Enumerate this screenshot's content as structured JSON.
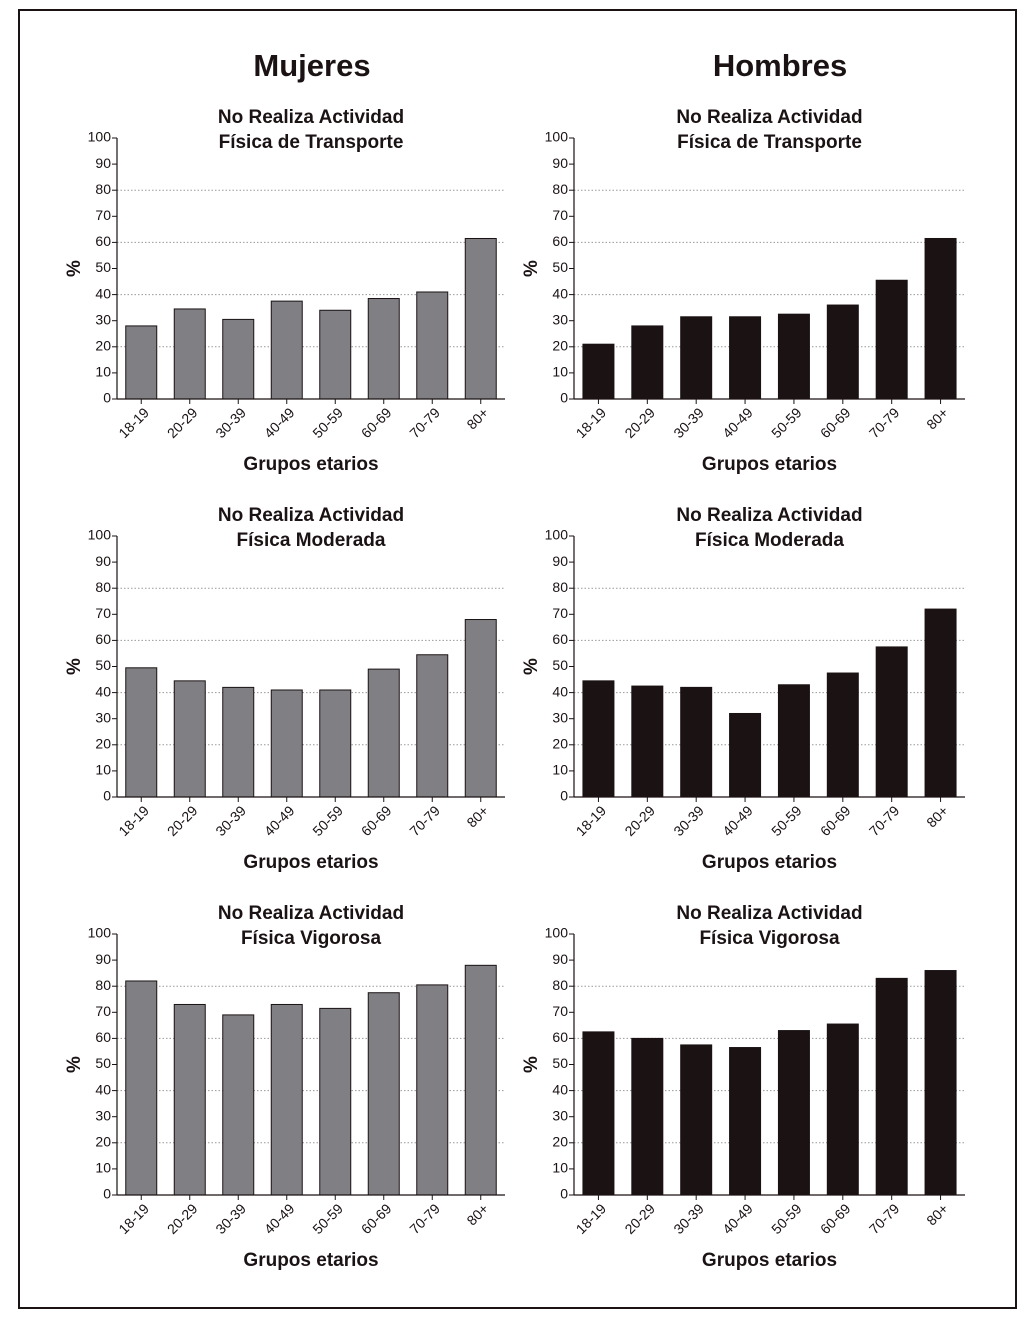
{
  "column_titles": [
    "Mujeres",
    "Hombres"
  ],
  "chart_data": [
    {
      "type": "bar",
      "title": [
        "No Realiza Actividad",
        "Física de Transporte"
      ],
      "ylabel": "%",
      "xlabel": "Grupos etarios",
      "categories": [
        "18-19",
        "20-29",
        "30-39",
        "40-49",
        "50-59",
        "60-69",
        "70-79",
        "80+"
      ],
      "values": [
        28,
        34.5,
        30.5,
        37.5,
        34,
        38.5,
        41,
        61.5
      ],
      "color": "#808084",
      "ylim": [
        0,
        100
      ],
      "yticks": [
        0,
        10,
        20,
        30,
        40,
        50,
        60,
        70,
        80,
        90,
        100
      ],
      "gridlines": [
        20,
        40,
        60,
        80
      ]
    },
    {
      "type": "bar",
      "title": [
        "No Realiza Actividad",
        "Física de Transporte"
      ],
      "ylabel": "%",
      "xlabel": "Grupos etarios",
      "categories": [
        "18-19",
        "20-29",
        "30-39",
        "40-49",
        "50-59",
        "60-69",
        "70-79",
        "80+"
      ],
      "values": [
        21,
        28,
        31.5,
        31.5,
        32.5,
        36,
        45.5,
        61.5
      ],
      "color": "#1a1213",
      "ylim": [
        0,
        100
      ],
      "yticks": [
        0,
        10,
        20,
        30,
        40,
        50,
        60,
        70,
        80,
        90,
        100
      ],
      "gridlines": [
        20,
        40,
        60,
        80
      ]
    },
    {
      "type": "bar",
      "title": [
        "No Realiza Actividad",
        "Física Moderada"
      ],
      "ylabel": "%",
      "xlabel": "Grupos etarios",
      "categories": [
        "18-19",
        "20-29",
        "30-39",
        "40-49",
        "50-59",
        "60-69",
        "70-79",
        "80+"
      ],
      "values": [
        49.5,
        44.5,
        42,
        41,
        41,
        49,
        54.5,
        68
      ],
      "color": "#808084",
      "ylim": [
        0,
        100
      ],
      "yticks": [
        0,
        10,
        20,
        30,
        40,
        50,
        60,
        70,
        80,
        90,
        100
      ],
      "gridlines": [
        20,
        40,
        60,
        80
      ]
    },
    {
      "type": "bar",
      "title": [
        "No Realiza Actividad",
        "Física Moderada"
      ],
      "ylabel": "%",
      "xlabel": "Grupos etarios",
      "categories": [
        "18-19",
        "20-29",
        "30-39",
        "40-49",
        "50-59",
        "60-69",
        "70-79",
        "80+"
      ],
      "values": [
        44.5,
        42.5,
        42,
        32,
        43,
        47.5,
        57.5,
        72
      ],
      "color": "#1a1213",
      "ylim": [
        0,
        100
      ],
      "yticks": [
        0,
        10,
        20,
        30,
        40,
        50,
        60,
        70,
        80,
        90,
        100
      ],
      "gridlines": [
        20,
        40,
        60,
        80
      ]
    },
    {
      "type": "bar",
      "title": [
        "No Realiza Actividad",
        "Física Vigorosa"
      ],
      "ylabel": "%",
      "xlabel": "Grupos etarios",
      "categories": [
        "18-19",
        "20-29",
        "30-39",
        "40-49",
        "50-59",
        "60-69",
        "70-79",
        "80+"
      ],
      "values": [
        82,
        73,
        69,
        73,
        71.5,
        77.5,
        80.5,
        88
      ],
      "color": "#808084",
      "ylim": [
        0,
        100
      ],
      "yticks": [
        0,
        10,
        20,
        30,
        40,
        50,
        60,
        70,
        80,
        90,
        100
      ],
      "gridlines": [
        20,
        40,
        60,
        80
      ]
    },
    {
      "type": "bar",
      "title": [
        "No Realiza Actividad",
        "Física Vigorosa"
      ],
      "ylabel": "%",
      "xlabel": "Grupos etarios",
      "categories": [
        "18-19",
        "20-29",
        "30-39",
        "40-49",
        "50-59",
        "60-69",
        "70-79",
        "80+"
      ],
      "values": [
        62.5,
        60,
        57.5,
        56.5,
        63,
        65.5,
        83,
        86
      ],
      "color": "#1a1213",
      "ylim": [
        0,
        100
      ],
      "yticks": [
        0,
        10,
        20,
        30,
        40,
        50,
        60,
        70,
        80,
        90,
        100
      ],
      "gridlines": [
        20,
        40,
        60,
        80
      ]
    }
  ]
}
